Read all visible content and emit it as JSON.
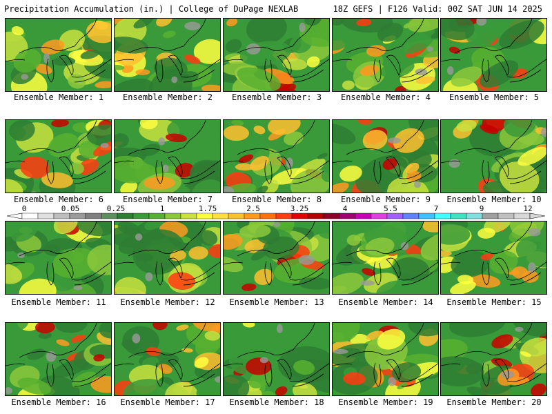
{
  "header": {
    "title": "Precipitation Accumulation (in.) | College of DuPage NEXLAB",
    "run_info": "18Z GEFS | F126 Valid: 00Z SAT JUN 14 2025"
  },
  "panels": [
    {
      "label": "Ensemble Member: 1"
    },
    {
      "label": "Ensemble Member: 2"
    },
    {
      "label": "Ensemble Member: 3"
    },
    {
      "label": "Ensemble Member: 4"
    },
    {
      "label": "Ensemble Member: 5"
    },
    {
      "label": "Ensemble Member: 6"
    },
    {
      "label": "Ensemble Member: 7"
    },
    {
      "label": "Ensemble Member: 8"
    },
    {
      "label": "Ensemble Member: 9"
    },
    {
      "label": "Ensemble Member: 10"
    },
    {
      "label": "Ensemble Member: 11"
    },
    {
      "label": "Ensemble Member: 12"
    },
    {
      "label": "Ensemble Member: 13"
    },
    {
      "label": "Ensemble Member: 14"
    },
    {
      "label": "Ensemble Member: 15"
    },
    {
      "label": "Ensemble Member: 16"
    },
    {
      "label": "Ensemble Member: 17"
    },
    {
      "label": "Ensemble Member: 18"
    },
    {
      "label": "Ensemble Member: 19"
    },
    {
      "label": "Ensemble Member: 20"
    }
  ],
  "colorbar": {
    "tick_labels": [
      "0",
      "0.05",
      "0.25",
      "1",
      "1.75",
      "2.5",
      "3.25",
      "4",
      "5.5",
      "7",
      "9",
      "12"
    ],
    "colors": [
      "#ffffff",
      "#e0e0e0",
      "#bdbdbd",
      "#9a9a9a",
      "#808080",
      "#5c8f5c",
      "#2e7d32",
      "#3a9a3a",
      "#58b030",
      "#8cc83c",
      "#c8e040",
      "#ffff40",
      "#ffe040",
      "#ffc030",
      "#ff9a20",
      "#ff7010",
      "#ff3c10",
      "#e00000",
      "#b40000",
      "#8c0028",
      "#a00070",
      "#c800b4",
      "#e040e0",
      "#a060ff",
      "#6080ff",
      "#40c0ff",
      "#40ffff",
      "#40e0c0",
      "#80e0e0",
      "#a0a0a0",
      "#c0c0c0",
      "#d8d8d8"
    ]
  }
}
